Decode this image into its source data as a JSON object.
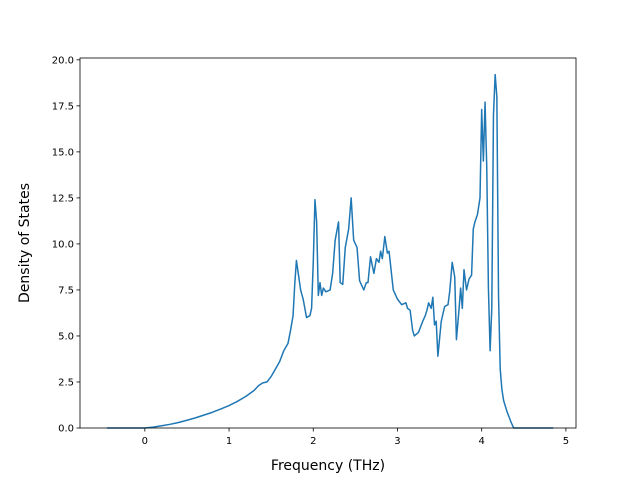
{
  "chart_data": {
    "type": "line",
    "title": "",
    "xlabel": "Frequency (THz)",
    "ylabel": "Density of States",
    "xlim": [
      -0.77,
      5.12
    ],
    "ylim": [
      0,
      20.1
    ],
    "xticks": [
      0,
      1,
      2,
      3,
      4,
      5
    ],
    "xtick_labels": [
      "0",
      "1",
      "2",
      "3",
      "4",
      "5"
    ],
    "yticks": [
      0,
      2.5,
      5,
      7.5,
      10,
      12.5,
      15,
      17.5,
      20
    ],
    "ytick_labels": [
      "0.0",
      "2.5",
      "5.0",
      "7.5",
      "10.0",
      "12.5",
      "15.0",
      "17.5",
      "20.0"
    ],
    "grid": false,
    "legend": "none",
    "line_color": "#1f77b4",
    "series": [
      {
        "x": [
          -0.45,
          -0.2,
          0.0,
          0.1,
          0.2,
          0.3,
          0.4,
          0.5,
          0.6,
          0.7,
          0.8,
          0.9,
          1.0,
          1.1,
          1.2,
          1.3,
          1.35,
          1.4,
          1.45,
          1.5,
          1.55,
          1.6,
          1.65,
          1.7,
          1.73,
          1.76,
          1.78,
          1.8,
          1.85,
          1.88,
          1.92,
          1.96,
          1.98,
          2.0,
          2.02,
          2.04,
          2.06,
          2.08,
          2.1,
          2.12,
          2.15,
          2.2,
          2.23,
          2.26,
          2.3,
          2.32,
          2.35,
          2.38,
          2.42,
          2.45,
          2.48,
          2.52,
          2.55,
          2.6,
          2.63,
          2.65,
          2.68,
          2.72,
          2.75,
          2.78,
          2.8,
          2.82,
          2.85,
          2.88,
          2.9,
          2.95,
          3.0,
          3.05,
          3.1,
          3.12,
          3.15,
          3.18,
          3.2,
          3.25,
          3.3,
          3.33,
          3.35,
          3.37,
          3.4,
          3.42,
          3.44,
          3.46,
          3.48,
          3.52,
          3.56,
          3.6,
          3.62,
          3.65,
          3.68,
          3.7,
          3.73,
          3.75,
          3.77,
          3.79,
          3.82,
          3.85,
          3.88,
          3.9,
          3.92,
          3.95,
          3.98,
          4.0,
          4.02,
          4.04,
          4.06,
          4.08,
          4.1,
          4.12,
          4.14,
          4.16,
          4.18,
          4.2,
          4.22,
          4.24,
          4.26,
          4.28,
          4.3,
          4.35,
          4.38,
          4.4,
          4.42,
          4.45,
          4.6,
          4.85
        ],
        "y": [
          0.0,
          0.0,
          0.0,
          0.05,
          0.12,
          0.2,
          0.3,
          0.42,
          0.55,
          0.7,
          0.85,
          1.03,
          1.22,
          1.45,
          1.72,
          2.05,
          2.3,
          2.45,
          2.5,
          2.8,
          3.2,
          3.6,
          4.2,
          4.6,
          5.3,
          6.1,
          7.8,
          9.1,
          7.5,
          7.0,
          6.0,
          6.1,
          6.5,
          9.0,
          12.4,
          11.2,
          7.2,
          7.9,
          7.2,
          7.6,
          7.4,
          7.5,
          8.4,
          10.2,
          11.2,
          7.9,
          7.8,
          9.8,
          10.8,
          12.5,
          10.2,
          9.8,
          8.0,
          7.5,
          7.9,
          7.9,
          9.3,
          8.4,
          9.2,
          9.0,
          9.6,
          9.2,
          10.4,
          9.5,
          9.6,
          7.5,
          7.0,
          6.7,
          6.8,
          6.5,
          6.4,
          5.3,
          5.0,
          5.2,
          5.8,
          6.1,
          6.4,
          6.8,
          6.5,
          7.1,
          5.6,
          5.8,
          3.9,
          5.8,
          6.6,
          6.7,
          7.4,
          9.0,
          8.2,
          4.8,
          6.4,
          7.6,
          6.5,
          8.6,
          7.5,
          8.1,
          8.3,
          10.8,
          11.2,
          11.6,
          12.5,
          17.3,
          14.5,
          17.7,
          14.2,
          7.6,
          4.2,
          6.5,
          17.0,
          19.2,
          18.0,
          7.2,
          3.2,
          2.1,
          1.5,
          1.2,
          0.9,
          0.3,
          0.0,
          0.0,
          0.0,
          0.0,
          0.0,
          0.0
        ]
      }
    ]
  }
}
